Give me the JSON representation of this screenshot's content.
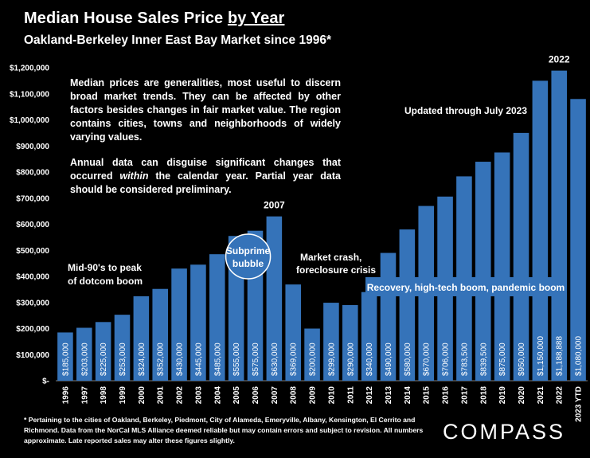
{
  "title_main": "Median House Sales Price ",
  "title_emph": "by Year",
  "subtitle": "Oakland-Berkeley Inner East Bay Market since 1996*",
  "note": {
    "p1": "Median prices are generalities, most useful to discern broad market trends. They can be affected by other factors besides changes in fair market value. The region contains cities, towns and neighborhoods of widely varying values.",
    "p2_before": "Annual data can disguise significant changes that occurred ",
    "p2_emph": "within",
    "p2_after": " the calendar year. Partial year data should be considered preliminary."
  },
  "footnote": "* Pertaining to the cities of Oakland, Berkeley, Piedmont, City of Alameda, Emeryville, Albany, Kensington, El Cerrito and Richmond. Data from the NorCal MLS Alliance deemed reliable but may contain errors and subject to revision. All numbers approximate. Late reported sales may alter these figures slightly.",
  "logo": "COMPASS",
  "colors": {
    "background": "#000000",
    "bar": "#3573b9",
    "text": "#ffffff"
  },
  "chart_data": {
    "type": "bar",
    "categories": [
      "1996",
      "1997",
      "1998",
      "1999",
      "2000",
      "2001",
      "2002",
      "2003",
      "2004",
      "2005",
      "2006",
      "2007",
      "2008",
      "2009",
      "2010",
      "2011",
      "2012",
      "2013",
      "2014",
      "2015",
      "2016",
      "2017",
      "2018",
      "2019",
      "2020",
      "2021",
      "2022",
      "2023 YTD"
    ],
    "values": [
      185000,
      203000,
      225000,
      253000,
      324000,
      352000,
      430000,
      445000,
      485000,
      555000,
      575000,
      630000,
      369000,
      200000,
      299000,
      290000,
      340000,
      490000,
      580000,
      670000,
      706000,
      783500,
      839500,
      875000,
      950000,
      1150000,
      1188888,
      1080000
    ],
    "value_labels": [
      "$185,000",
      "$203,000",
      "$225,000",
      "$253,000",
      "$324,000",
      "$352,000",
      "$430,000",
      "$445,000",
      "$485,000",
      "$555,000",
      "$575,000",
      "$630,000",
      "$369,000",
      "$200,000",
      "$299,000",
      "$290,000",
      "$340,000",
      "$490,000",
      "$580,000",
      "$670,000",
      "$706,000",
      "$783,500",
      "$839,500",
      "$875,000",
      "$950,000",
      "$1,150,000",
      "$1,188,888",
      "$1,080,000"
    ],
    "ylim": [
      0,
      1200000
    ],
    "yticks": [
      0,
      100000,
      200000,
      300000,
      400000,
      500000,
      600000,
      700000,
      800000,
      900000,
      1000000,
      1100000,
      1200000
    ],
    "ytick_labels": [
      "$-",
      "$100,000",
      "$200,000",
      "$300,000",
      "$400,000",
      "$500,000",
      "$600,000",
      "$700,000",
      "$800,000",
      "$900,000",
      "$1,000,000",
      "$1,100,000",
      "$1,200,000"
    ],
    "grid": false,
    "annotations": {
      "year_2007": "2007",
      "year_2022": "2022",
      "dotcom_1": "Mid-90's to peak",
      "dotcom_2": "of dotcom boom",
      "bubble_1": "Subprime",
      "bubble_2": "bubble",
      "crash_1": "Market crash,",
      "crash_2": "foreclosure crisis",
      "recovery": "Recovery, high-tech boom, pandemic boom",
      "updated": "Updated through July 2023"
    }
  }
}
